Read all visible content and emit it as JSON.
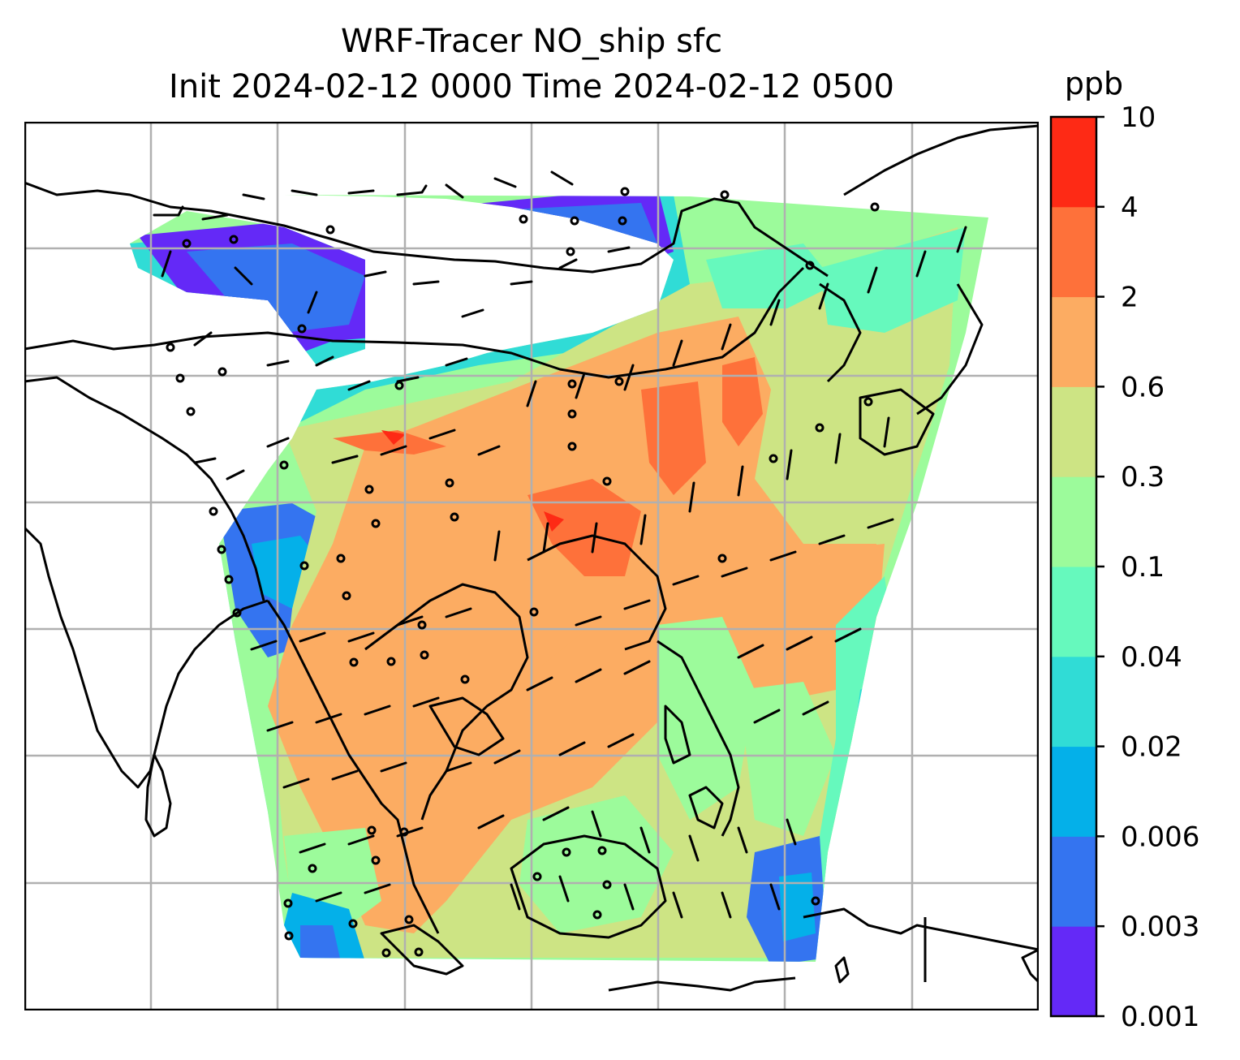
{
  "title": {
    "line1": "WRF-Tracer NO_ship sfc",
    "line2": "Init 2024-02-12 0000 Time 2024-02-12 0500"
  },
  "colorbar": {
    "unit": "ppb",
    "levels": [
      "0.001",
      "0.003",
      "0.006",
      "0.02",
      "0.04",
      "0.1",
      "0.3",
      "0.6",
      "2",
      "4",
      "10"
    ],
    "colors": [
      "#6429f7",
      "#3474f0",
      "#04b0e9",
      "#30dcd6",
      "#66f9bd",
      "#9cfb9b",
      "#cde484",
      "#fcac62",
      "#fe713a",
      "#fe2a15"
    ]
  },
  "map": {
    "field": "NO_ship",
    "level": "sfc",
    "gridlines": true,
    "overlay": "wind barbs",
    "coastlines": true
  }
}
